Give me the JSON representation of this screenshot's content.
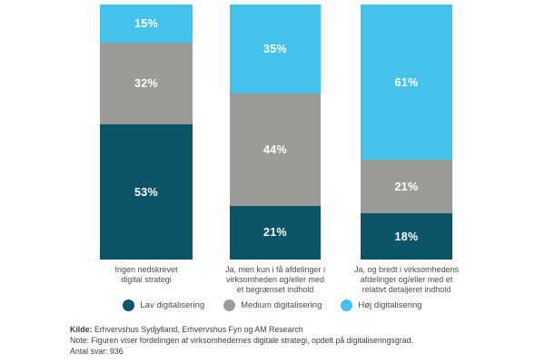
{
  "chart_data": {
    "type": "bar",
    "stacked": true,
    "orientation": "vertical",
    "title": "",
    "xlabel": "",
    "ylabel": "",
    "ylim": [
      0,
      100
    ],
    "grid": false,
    "legend_position": "bottom",
    "value_suffix": "%",
    "categories": [
      "Ingen nedskrevet\ndigital strategi",
      "Ja, men kun i få afdelinger i\nvirksomheden og/eller med\net begrænset indhold",
      "Ja, og bredt i virksomhedens\nafdelinger og/eller med et\nrelativt detaljeret indhold"
    ],
    "series": [
      {
        "name": "Lav digitalisering",
        "color": "#0c5468",
        "values": [
          53,
          21,
          18
        ]
      },
      {
        "name": "Medium digitalisering",
        "color": "#9b9b99",
        "values": [
          32,
          44,
          21
        ]
      },
      {
        "name": "Høj digitalisering",
        "color": "#45c2ec",
        "values": [
          15,
          35,
          61
        ]
      }
    ],
    "segment_value_labels": {
      "color": "#ffffff",
      "bar1_top_to_bottom": [
        "15%",
        "32%",
        "53%"
      ],
      "bar2_top_to_bottom": [
        "35%",
        "44%",
        "21%"
      ],
      "bar3_top_to_bottom": [
        "61%",
        "21%",
        "18%"
      ]
    }
  },
  "footer": {
    "kilde_label": "Kilde:",
    "kilde_text": " Erhvervshus Sydjylland, Erhvervshus Fyn og AM Research",
    "note": "Note: Figuren viser fordelingen af virksomhedernes digitale strategi, opdelt på digitaliseringsgrad.",
    "antal": "Antal svar: 936"
  }
}
